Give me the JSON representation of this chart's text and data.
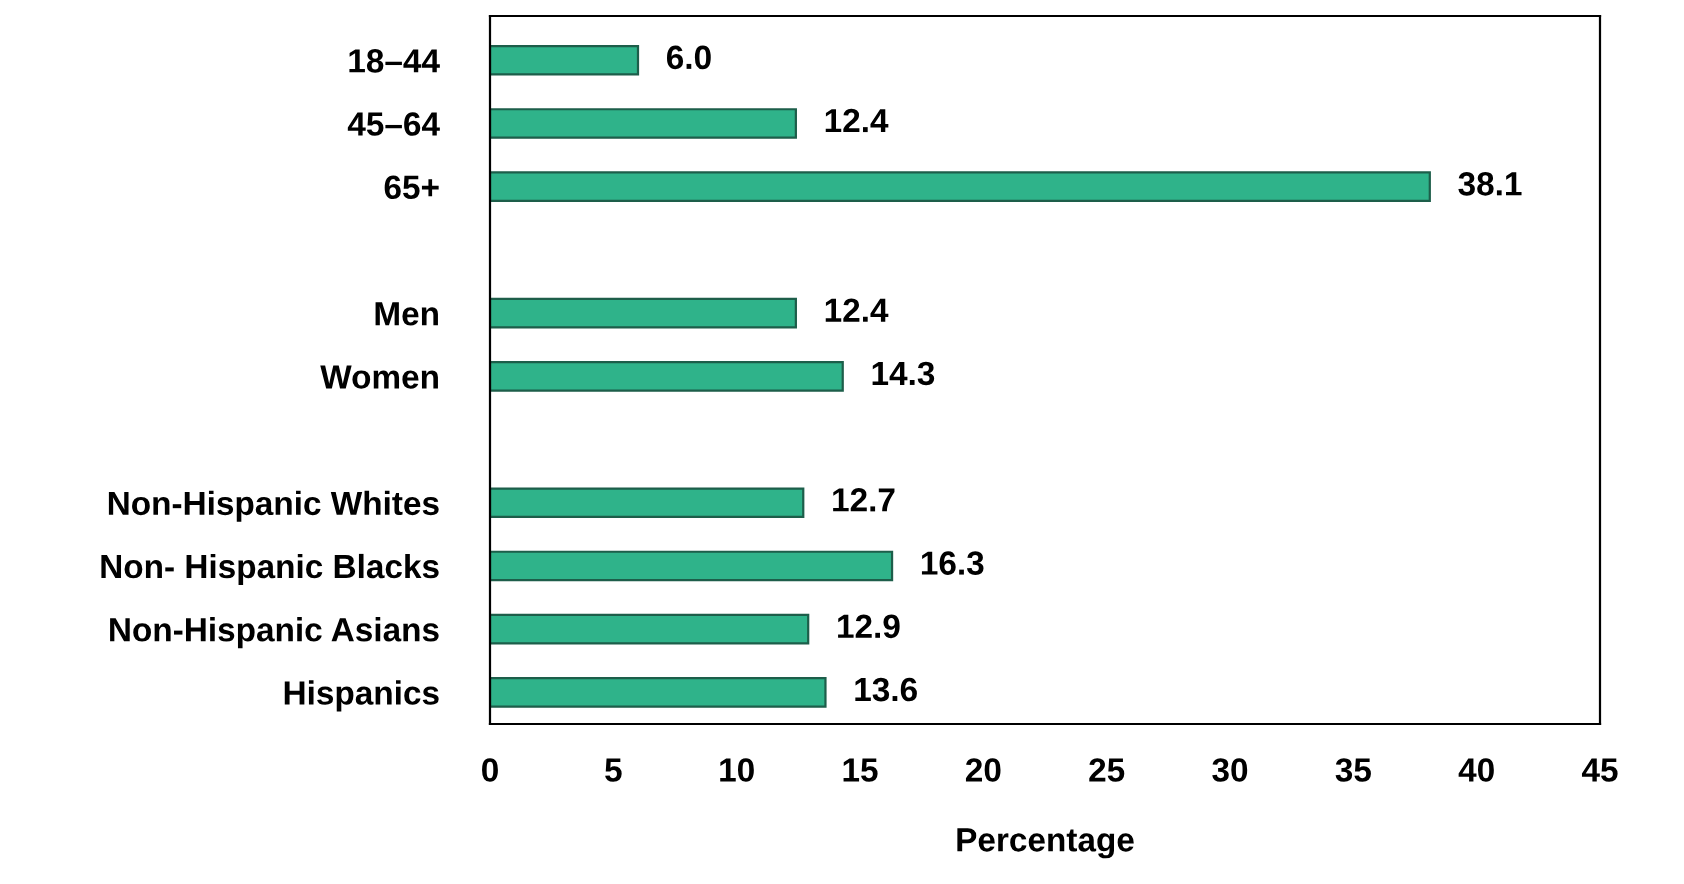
{
  "chart_data": {
    "type": "bar",
    "orientation": "horizontal",
    "xlabel": "Percentage",
    "categories": [
      "18–44",
      "45–64",
      "65+",
      null,
      "Men",
      "Women",
      null,
      "Non-Hispanic Whites",
      "Non- Hispanic Blacks",
      "Non-Hispanic Asians",
      "Hispanics"
    ],
    "values": [
      6.0,
      12.4,
      38.1,
      null,
      12.4,
      14.3,
      null,
      12.7,
      16.3,
      12.9,
      13.6
    ],
    "value_labels": [
      "6.0",
      "12.4",
      "38.1",
      null,
      "12.4",
      "14.3",
      null,
      "12.7",
      "16.3",
      "12.9",
      "13.6"
    ],
    "color": "#2fb38a",
    "xlim": [
      0,
      45
    ],
    "xticks": [
      0,
      5,
      10,
      15,
      20,
      25,
      30,
      35,
      40,
      45
    ],
    "grid": false,
    "legend": false
  }
}
